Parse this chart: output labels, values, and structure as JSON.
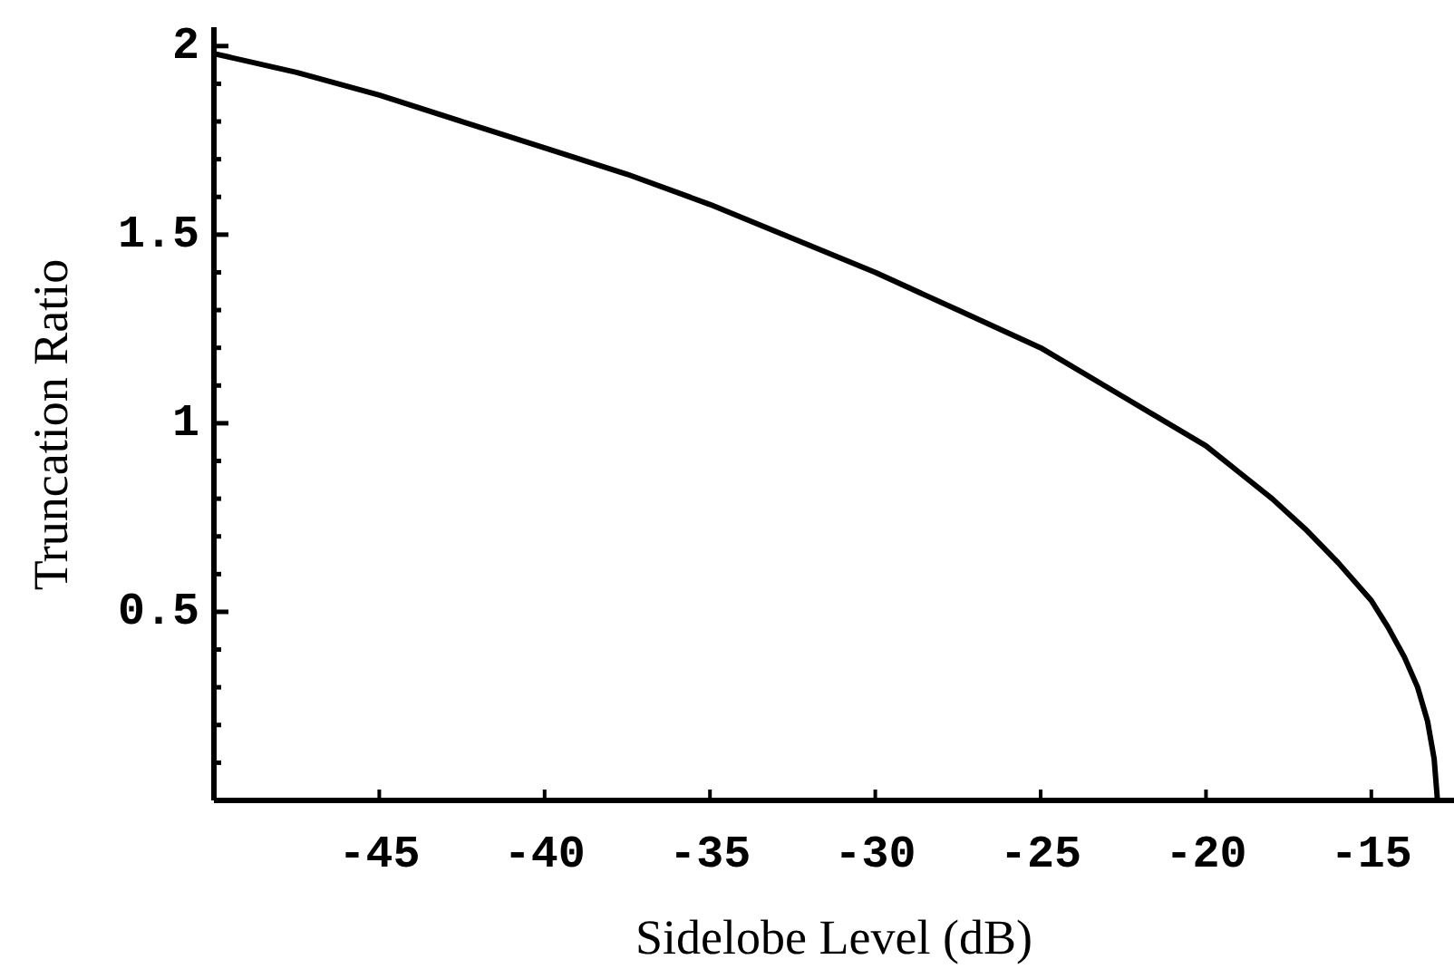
{
  "chart_data": {
    "type": "line",
    "xlabel": "Sidelobe Level (dB)",
    "ylabel": "Truncation Ratio",
    "x": [
      -50,
      -47.5,
      -45,
      -42.5,
      -40,
      -37.5,
      -35,
      -32.5,
      -30,
      -27.5,
      -25,
      -22.5,
      -20,
      -19,
      -18,
      -17,
      -16,
      -15,
      -14.5,
      -14,
      -13.6,
      -13.3,
      -13.1,
      -13.0
    ],
    "series": [
      {
        "color": "#000000",
        "values": [
          1.98,
          1.93,
          1.87,
          1.8,
          1.73,
          1.66,
          1.58,
          1.49,
          1.4,
          1.3,
          1.2,
          1.07,
          0.94,
          0.87,
          0.8,
          0.72,
          0.63,
          0.53,
          0.46,
          0.38,
          0.3,
          0.21,
          0.11,
          0
        ]
      }
    ],
    "xlim": [
      -50,
      -12.5
    ],
    "ylim": [
      0,
      2.05
    ],
    "xticks": [
      -45,
      -40,
      -35,
      -30,
      -25,
      -20,
      -15
    ],
    "yticks": [
      {
        "value": 0.1,
        "label": null
      },
      {
        "value": 0.2,
        "label": null
      },
      {
        "value": 0.3,
        "label": null
      },
      {
        "value": 0.4,
        "label": null
      },
      0.5,
      {
        "value": 0.6,
        "label": null
      },
      {
        "value": 0.7,
        "label": null
      },
      {
        "value": 0.8,
        "label": null
      },
      {
        "value": 0.9,
        "label": null
      },
      1,
      {
        "value": 1.1,
        "label": null
      },
      {
        "value": 1.2,
        "label": null
      },
      {
        "value": 1.3,
        "label": null
      },
      {
        "value": 1.4,
        "label": null
      },
      1.5,
      {
        "value": 1.6,
        "label": null
      },
      {
        "value": 1.7,
        "label": null
      },
      {
        "value": 1.8,
        "label": null
      },
      {
        "value": 1.9,
        "label": null
      },
      2
    ],
    "marker": "none",
    "line_style": "solid"
  }
}
